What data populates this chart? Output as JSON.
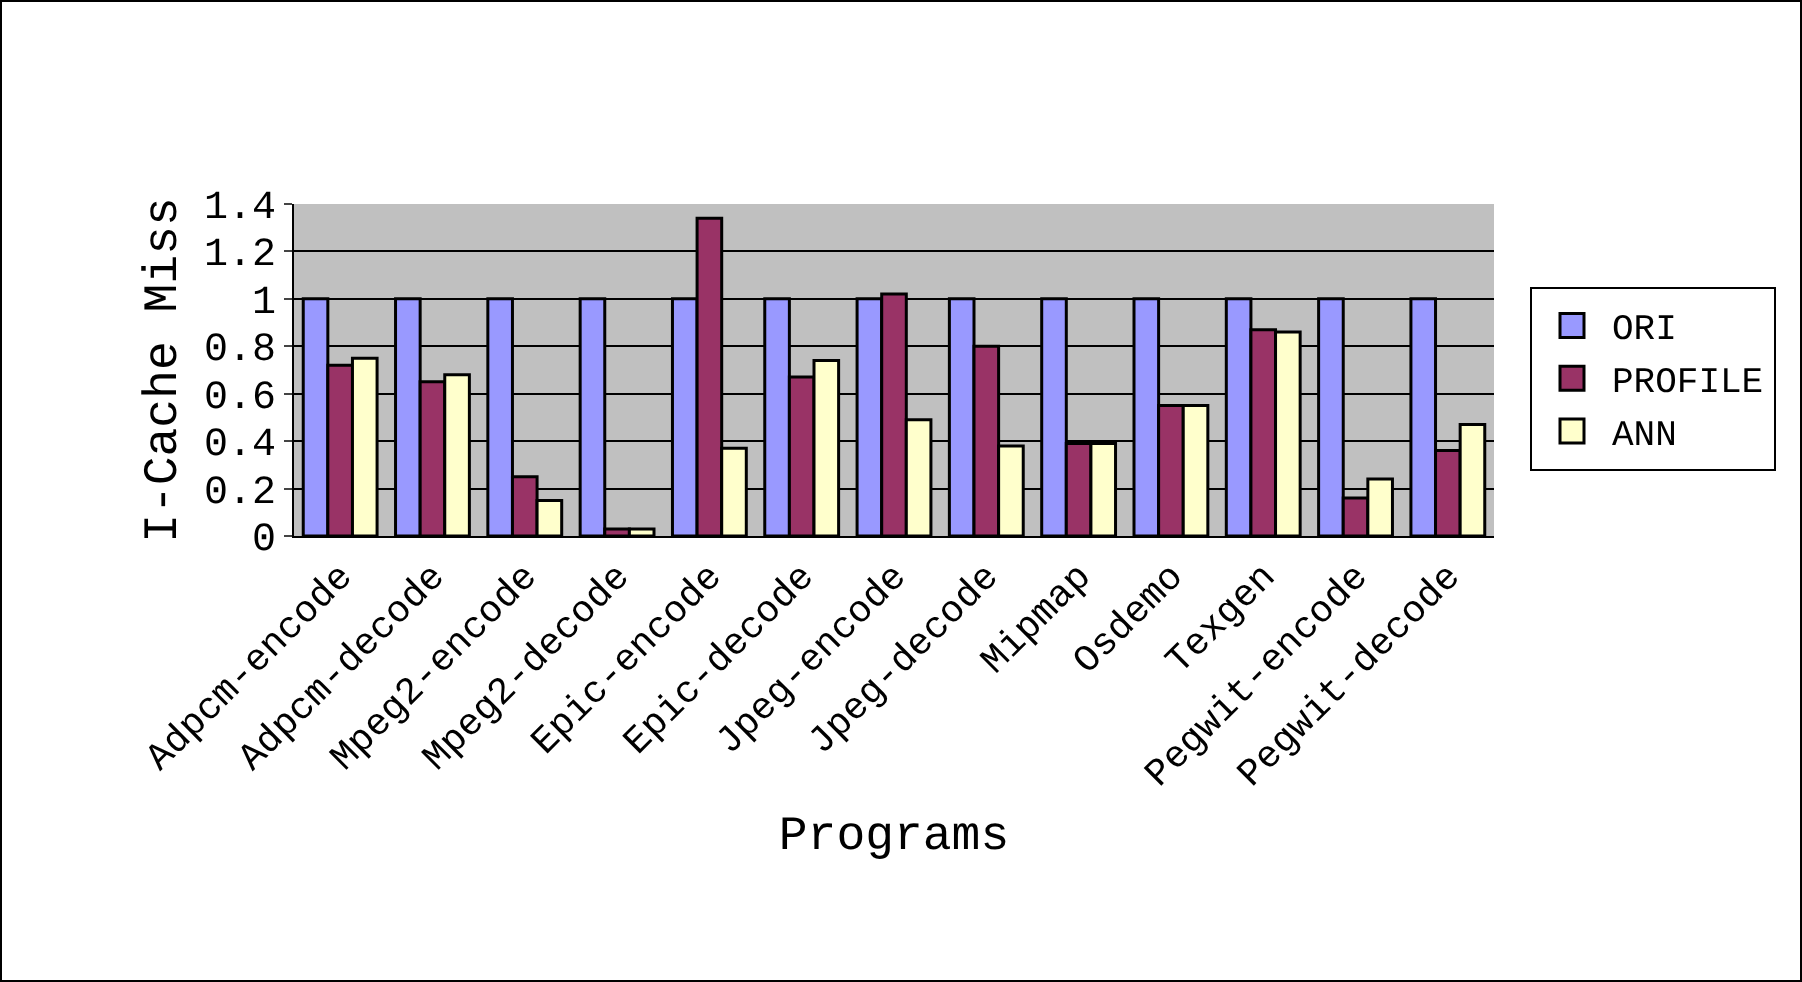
{
  "chart_data": {
    "type": "bar",
    "xlabel": "Programs",
    "ylabel": "I-Cache Miss",
    "categories": [
      "Adpcm-encode",
      "Adpcm-decode",
      "Mpeg2-encode",
      "Mpeg2-decode",
      "Epic-encode",
      "Epic-decode",
      "Jpeg-encode",
      "Jpeg-decode",
      "Mipmap",
      "Osdemo",
      "Texgen",
      "Pegwit-encode",
      "Pegwit-decode"
    ],
    "series": [
      {
        "name": "ORI",
        "color": "#9999ff",
        "values": [
          1,
          1,
          1,
          1,
          1,
          1,
          1,
          1,
          1,
          1,
          1,
          1,
          1
        ]
      },
      {
        "name": "PROFILE",
        "color": "#993366",
        "values": [
          0.72,
          0.65,
          0.25,
          0.03,
          1.34,
          0.67,
          1.02,
          0.8,
          0.39,
          0.55,
          0.87,
          0.16,
          0.36
        ]
      },
      {
        "name": "ANN",
        "color": "#ffffcc",
        "values": [
          0.75,
          0.68,
          0.15,
          0.03,
          0.37,
          0.74,
          0.49,
          0.38,
          0.39,
          0.55,
          0.86,
          0.24,
          0.47
        ]
      }
    ],
    "ylim": [
      0,
      1.4
    ],
    "yticks": [
      0,
      0.2,
      0.4,
      0.6,
      0.8,
      1,
      1.2,
      1.4
    ],
    "grid": "y",
    "legend": "right"
  }
}
